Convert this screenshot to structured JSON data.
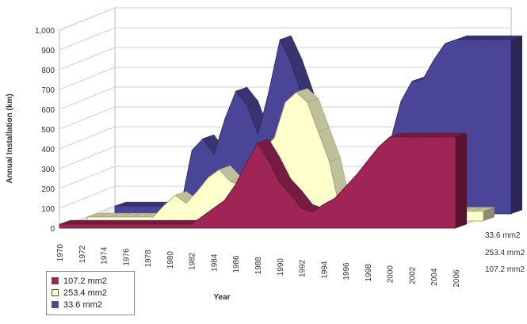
{
  "chart_data": {
    "type": "area",
    "variant": "3d-depth",
    "title": "",
    "xlabel": "Year",
    "ylabel": "Annual Installation (km)",
    "ylim": [
      0,
      1000
    ],
    "yticks": [
      "0",
      "100",
      "200",
      "300",
      "400",
      "500",
      "600",
      "700",
      "800",
      "900",
      "1,000"
    ],
    "x": [
      "1970",
      "1971",
      "1972",
      "1973",
      "1974",
      "1975",
      "1976",
      "1977",
      "1978",
      "1979",
      "1980",
      "1981",
      "1982",
      "1983",
      "1984",
      "1985",
      "1986",
      "1987",
      "1988",
      "1989",
      "1990",
      "1991",
      "1992",
      "1993",
      "1994",
      "1995",
      "1996",
      "1997",
      "1998",
      "1999",
      "2000",
      "2001",
      "2002",
      "2003",
      "2004",
      "2005",
      "2006"
    ],
    "xtick_labels": [
      "1970",
      "1972",
      "1974",
      "1976",
      "1978",
      "1980",
      "1982",
      "1984",
      "1986",
      "1988",
      "1990",
      "1992",
      "1994",
      "1996",
      "1998",
      "2000",
      "2002",
      "2004",
      "2006"
    ],
    "grid": true,
    "legend_position": "bottom-left",
    "series": [
      {
        "name": "107.2 mm2",
        "color": "#9e2556",
        "values": [
          20,
          20,
          20,
          20,
          20,
          20,
          20,
          20,
          20,
          20,
          20,
          20,
          20,
          60,
          100,
          140,
          220,
          330,
          430,
          340,
          230,
          170,
          100,
          80,
          120,
          150,
          210,
          270,
          340,
          410,
          460,
          460,
          460,
          460,
          460,
          460,
          460
        ]
      },
      {
        "name": "253.4 mm2",
        "color": "#ffffcc",
        "values": [
          20,
          20,
          20,
          20,
          20,
          20,
          20,
          80,
          130,
          90,
          150,
          220,
          260,
          200,
          180,
          250,
          360,
          420,
          600,
          650,
          600,
          450,
          300,
          50,
          50,
          50,
          50,
          50,
          50,
          50,
          50,
          50,
          50,
          50,
          50,
          50,
          50
        ]
      },
      {
        "name": "33.6 mm2",
        "color": "#4a4596",
        "values": [
          40,
          40,
          40,
          40,
          40,
          40,
          40,
          320,
          380,
          300,
          480,
          620,
          550,
          400,
          620,
          880,
          760,
          600,
          400,
          250,
          80,
          80,
          120,
          150,
          280,
          360,
          570,
          670,
          680,
          780,
          860,
          880,
          880,
          880,
          880,
          880,
          880
        ]
      }
    ]
  }
}
